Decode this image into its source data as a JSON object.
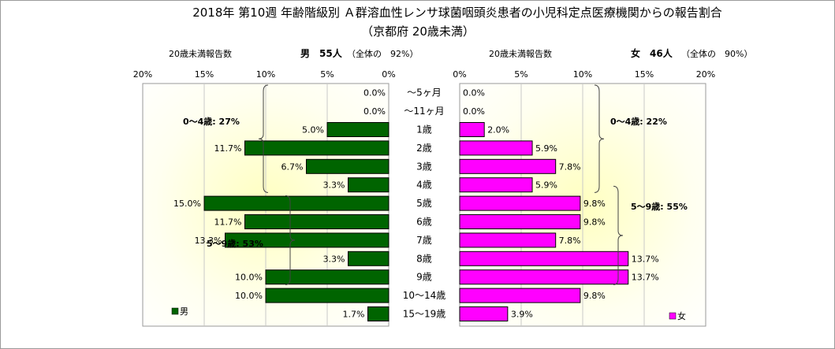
{
  "chart_data": {
    "type": "bar",
    "title": "2018年 第10週 年齢階級別 Ａ群溶血性レンサ球菌咽頭炎患者の小児科定点医療機関からの報告割合",
    "subtitle": "（京都府 20歳未満）",
    "categories": [
      "～5ヶ月",
      "～11ヶ月",
      "1歳",
      "2歳",
      "3歳",
      "4歳",
      "5歳",
      "6歳",
      "7歳",
      "8歳",
      "9歳",
      "10～14歳",
      "15～19歳"
    ],
    "xlim": [
      0,
      20
    ],
    "ticks": [
      "20%",
      "15%",
      "10%",
      "5%",
      "0%"
    ],
    "ticks_right": [
      "0%",
      "5%",
      "10%",
      "15%",
      "20%"
    ],
    "series": [
      {
        "name": "男",
        "values": [
          0.0,
          0.0,
          5.0,
          11.7,
          6.7,
          3.3,
          15.0,
          11.7,
          13.3,
          3.3,
          10.0,
          10.0,
          1.7
        ],
        "labels": [
          "0.0%",
          "0.0%",
          "5.0%",
          "11.7%",
          "6.7%",
          "3.3%",
          "15.0%",
          "11.7%",
          "13.3%",
          "3.3%",
          "10.0%",
          "10.0%",
          "1.7%"
        ],
        "color": "#006400",
        "header_left": "20歳未満報告数",
        "header_count": "男　55人",
        "header_share": "（全体の　92%）",
        "group_labels": [
          "0～4歳: 27%",
          "5～9歳: 53%"
        ]
      },
      {
        "name": "女",
        "values": [
          0.0,
          0.0,
          2.0,
          5.9,
          7.8,
          5.9,
          9.8,
          9.8,
          7.8,
          13.7,
          13.7,
          9.8,
          3.9
        ],
        "labels": [
          "0.0%",
          "0.0%",
          "2.0%",
          "5.9%",
          "7.8%",
          "5.9%",
          "9.8%",
          "9.8%",
          "7.8%",
          "13.7%",
          "13.7%",
          "9.8%",
          "3.9%"
        ],
        "color": "#ff00ff",
        "header_left": "20歳未満報告数",
        "header_count": "女　46人",
        "header_share": "（全体の　90%）",
        "group_labels": [
          "0～4歳: 22%",
          "5～9歳: 55%"
        ]
      }
    ]
  }
}
